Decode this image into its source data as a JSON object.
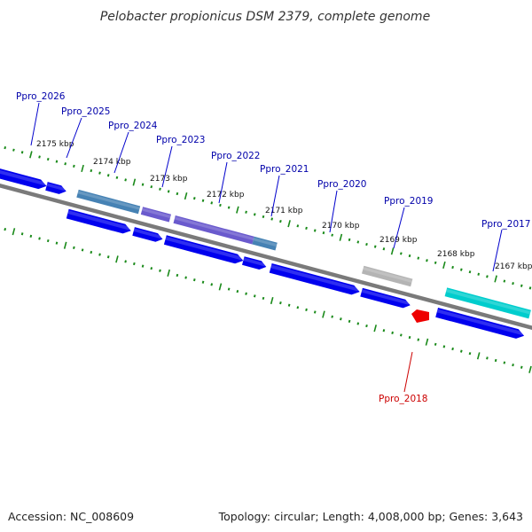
{
  "title": "Pelobacter propionicus DSM 2379, complete genome",
  "footer": {
    "accession": "Accession: NC_008609",
    "topology": "Topology: circular; Length: 4,008,000 bp; Genes: 3,643"
  },
  "colors": {
    "cds": "#0000ee",
    "cds_light": "#2a2aff",
    "rna": "#ee0000",
    "backbone": "#7a7a7a",
    "tick": "#1a8a1a",
    "label_blue": "#0000aa",
    "label_red": "#cc0000",
    "cog_steelblue": "#4682b4",
    "cog_slateblue": "#6a5acd",
    "cog_gray": "#b4b4b4",
    "cog_cyan": "#00cdcd"
  },
  "kbp_labels": [
    "2175 kbp",
    "2174 kbp",
    "2173 kbp",
    "2172 kbp",
    "2171 kbp",
    "2170 kbp",
    "2169 kbp",
    "2168 kbp",
    "2167 kbp"
  ],
  "gene_labels": [
    {
      "name": "Ppro_2026",
      "color": "label_blue"
    },
    {
      "name": "Ppro_2025",
      "color": "label_blue"
    },
    {
      "name": "Ppro_2024",
      "color": "label_blue"
    },
    {
      "name": "Ppro_2023",
      "color": "label_blue"
    },
    {
      "name": "Ppro_2022",
      "color": "label_blue"
    },
    {
      "name": "Ppro_2021",
      "color": "label_blue"
    },
    {
      "name": "Ppro_2020",
      "color": "label_blue"
    },
    {
      "name": "Ppro_2019",
      "color": "label_blue"
    },
    {
      "name": "Ppro_2017",
      "color": "label_blue"
    },
    {
      "name": "Ppro_2018",
      "color": "label_red"
    }
  ]
}
